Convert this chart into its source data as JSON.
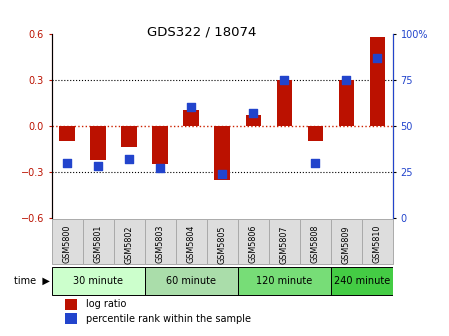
{
  "title": "GDS322 / 18074",
  "samples": [
    "GSM5800",
    "GSM5801",
    "GSM5802",
    "GSM5803",
    "GSM5804",
    "GSM5805",
    "GSM5806",
    "GSM5807",
    "GSM5808",
    "GSM5809",
    "GSM5810"
  ],
  "log_ratio": [
    -0.1,
    -0.22,
    -0.14,
    -0.25,
    0.1,
    -0.35,
    0.07,
    0.3,
    -0.1,
    0.3,
    0.58
  ],
  "percentile_rank": [
    30,
    28,
    32,
    27,
    60,
    24,
    57,
    75,
    30,
    75,
    87
  ],
  "time_groups": [
    {
      "label": "30 minute",
      "start": 0,
      "end": 2,
      "color": "#ccffcc"
    },
    {
      "label": "60 minute",
      "start": 3,
      "end": 5,
      "color": "#aaddaa"
    },
    {
      "label": "120 minute",
      "start": 6,
      "end": 8,
      "color": "#77dd77"
    },
    {
      "label": "240 minute",
      "start": 9,
      "end": 10,
      "color": "#44cc44"
    }
  ],
  "ylim_left": [
    -0.6,
    0.6
  ],
  "ylim_right": [
    0,
    100
  ],
  "yticks_left": [
    -0.6,
    -0.3,
    0.0,
    0.3,
    0.6
  ],
  "yticks_right": [
    0,
    25,
    50,
    75,
    100
  ],
  "bar_color": "#bb1100",
  "dot_color": "#2244cc",
  "hline_color": "#cc2200",
  "bar_width": 0.5,
  "dot_size": 28,
  "legend_log_ratio": "log ratio",
  "legend_percentile": "percentile rank within the sample",
  "group_colors": [
    "#ccffcc",
    "#aaddaa",
    "#77dd77",
    "#44cc44"
  ],
  "sample_box_color": "#dddddd",
  "sample_box_edge": "#aaaaaa"
}
